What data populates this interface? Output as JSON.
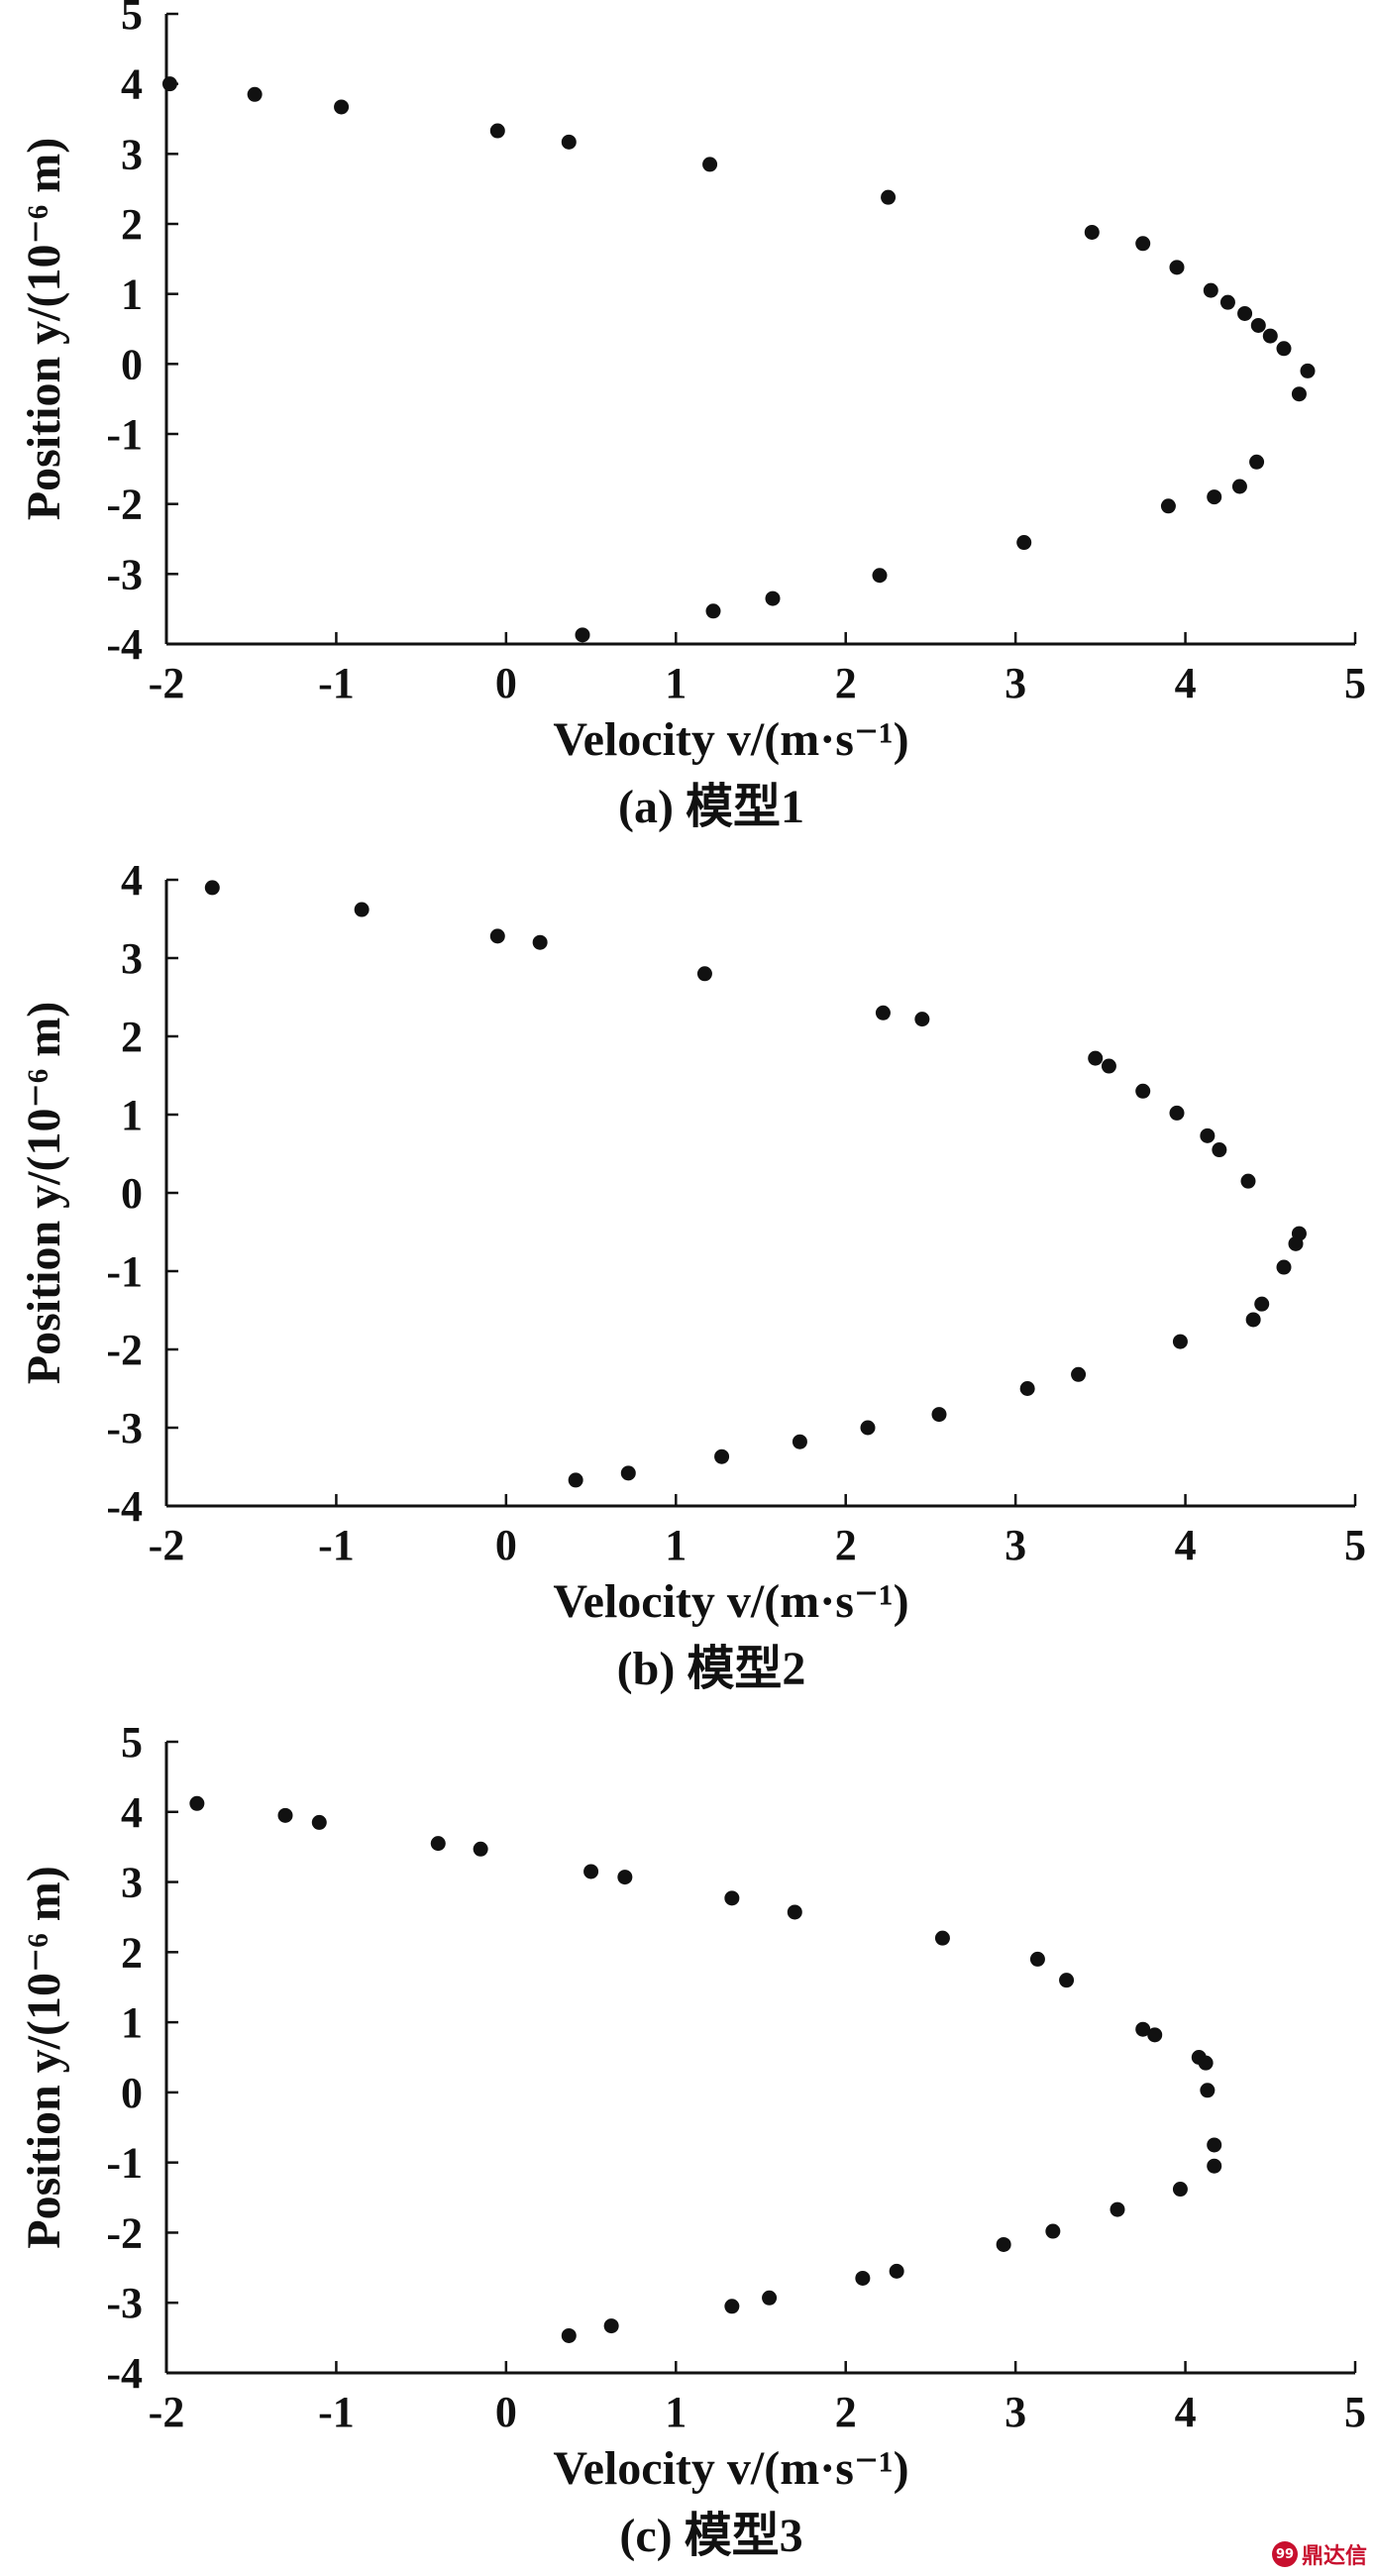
{
  "chart_data": [
    {
      "type": "scatter",
      "caption": "(a) 模型1",
      "xlabel": "Velocity v/(m·s⁻¹)",
      "ylabel": "Position y/(10⁻⁶ m)",
      "xlim": [
        -2,
        5
      ],
      "ylim": [
        -4,
        5
      ],
      "xticks": [
        -2,
        -1,
        0,
        1,
        2,
        3,
        4,
        5
      ],
      "yticks": [
        -4,
        -3,
        -2,
        -1,
        0,
        1,
        2,
        3,
        4,
        5
      ],
      "marker_color": "#111111",
      "points": [
        [
          -1.98,
          4.0
        ],
        [
          -1.48,
          3.85
        ],
        [
          -0.97,
          3.67
        ],
        [
          -0.05,
          3.33
        ],
        [
          0.37,
          3.17
        ],
        [
          1.2,
          2.85
        ],
        [
          2.25,
          2.38
        ],
        [
          3.45,
          1.88
        ],
        [
          3.75,
          1.72
        ],
        [
          3.95,
          1.38
        ],
        [
          4.15,
          1.05
        ],
        [
          4.25,
          0.88
        ],
        [
          4.35,
          0.72
        ],
        [
          4.43,
          0.55
        ],
        [
          4.5,
          0.4
        ],
        [
          4.58,
          0.22
        ],
        [
          4.72,
          -0.1
        ],
        [
          4.67,
          -0.43
        ],
        [
          4.42,
          -1.4
        ],
        [
          4.32,
          -1.75
        ],
        [
          4.17,
          -1.9
        ],
        [
          3.9,
          -2.03
        ],
        [
          3.05,
          -2.55
        ],
        [
          2.2,
          -3.02
        ],
        [
          1.57,
          -3.35
        ],
        [
          1.22,
          -3.53
        ],
        [
          0.45,
          -3.87
        ]
      ]
    },
    {
      "type": "scatter",
      "caption": "(b) 模型2",
      "xlabel": "Velocity v/(m·s⁻¹)",
      "ylabel": "Position y/(10⁻⁶ m)",
      "xlim": [
        -2,
        5
      ],
      "ylim": [
        -4,
        4
      ],
      "xticks": [
        -2,
        -1,
        0,
        1,
        2,
        3,
        4,
        5
      ],
      "yticks": [
        -4,
        -3,
        -2,
        -1,
        0,
        1,
        2,
        3,
        4
      ],
      "marker_color": "#111111",
      "points": [
        [
          -1.73,
          3.9
        ],
        [
          -0.85,
          3.62
        ],
        [
          -0.05,
          3.28
        ],
        [
          0.2,
          3.2
        ],
        [
          1.17,
          2.8
        ],
        [
          2.22,
          2.3
        ],
        [
          2.45,
          2.22
        ],
        [
          3.47,
          1.72
        ],
        [
          3.55,
          1.62
        ],
        [
          3.75,
          1.3
        ],
        [
          3.95,
          1.02
        ],
        [
          4.13,
          0.73
        ],
        [
          4.2,
          0.55
        ],
        [
          4.37,
          0.15
        ],
        [
          4.67,
          -0.52
        ],
        [
          4.65,
          -0.65
        ],
        [
          4.58,
          -0.95
        ],
        [
          4.45,
          -1.42
        ],
        [
          4.4,
          -1.62
        ],
        [
          3.97,
          -1.9
        ],
        [
          3.37,
          -2.32
        ],
        [
          3.07,
          -2.5
        ],
        [
          2.55,
          -2.83
        ],
        [
          2.13,
          -3.0
        ],
        [
          1.73,
          -3.18
        ],
        [
          1.27,
          -3.37
        ],
        [
          0.72,
          -3.58
        ],
        [
          0.41,
          -3.67
        ]
      ]
    },
    {
      "type": "scatter",
      "caption": "(c) 模型3",
      "xlabel": "Velocity v/(m·s⁻¹)",
      "ylabel": "Position y/(10⁻⁶ m)",
      "xlim": [
        -2,
        5
      ],
      "ylim": [
        -4,
        5
      ],
      "xticks": [
        -2,
        -1,
        0,
        1,
        2,
        3,
        4,
        5
      ],
      "yticks": [
        -4,
        -3,
        -2,
        -1,
        0,
        1,
        2,
        3,
        4,
        5
      ],
      "marker_color": "#111111",
      "points": [
        [
          -1.82,
          4.12
        ],
        [
          -1.3,
          3.95
        ],
        [
          -1.1,
          3.85
        ],
        [
          -0.4,
          3.55
        ],
        [
          -0.15,
          3.47
        ],
        [
          0.5,
          3.15
        ],
        [
          0.7,
          3.07
        ],
        [
          1.33,
          2.77
        ],
        [
          1.7,
          2.57
        ],
        [
          2.57,
          2.2
        ],
        [
          3.13,
          1.9
        ],
        [
          3.3,
          1.6
        ],
        [
          3.75,
          0.9
        ],
        [
          3.82,
          0.82
        ],
        [
          4.08,
          0.5
        ],
        [
          4.12,
          0.42
        ],
        [
          4.13,
          0.03
        ],
        [
          4.17,
          -0.75
        ],
        [
          4.17,
          -1.05
        ],
        [
          3.97,
          -1.38
        ],
        [
          3.6,
          -1.67
        ],
        [
          3.22,
          -1.98
        ],
        [
          2.93,
          -2.17
        ],
        [
          2.3,
          -2.55
        ],
        [
          2.1,
          -2.65
        ],
        [
          1.55,
          -2.93
        ],
        [
          1.33,
          -3.05
        ],
        [
          0.62,
          -3.33
        ],
        [
          0.37,
          -3.47
        ]
      ]
    }
  ],
  "watermark": {
    "logo_text": "99",
    "text": "鼎达信",
    "color": "#c8102e"
  }
}
